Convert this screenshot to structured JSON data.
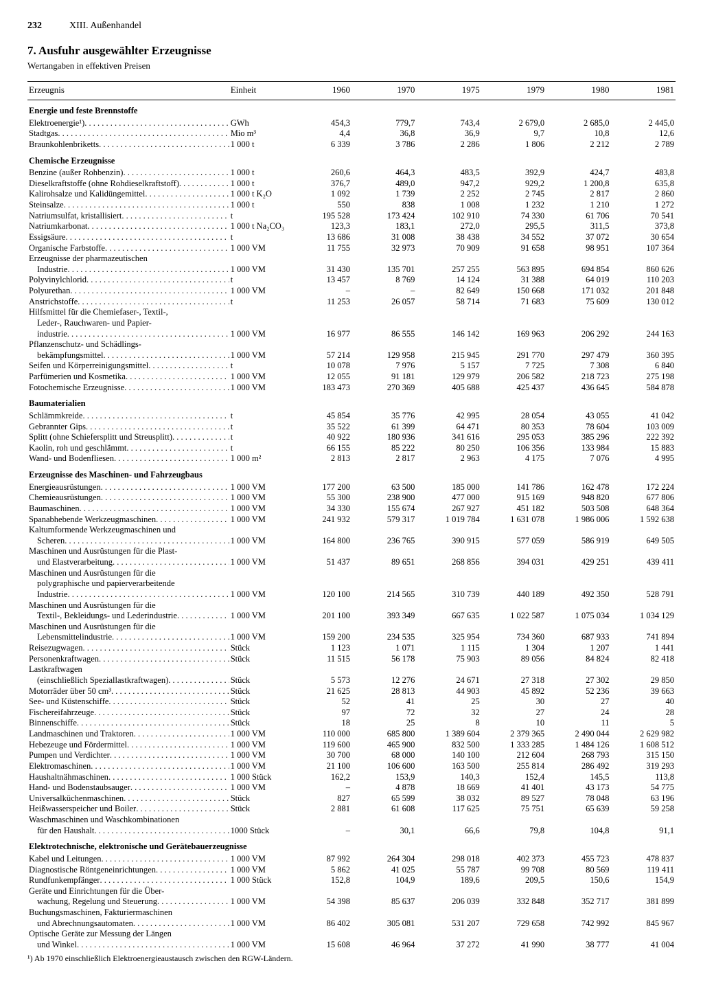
{
  "page": {
    "number": "232",
    "chapter": "XIII. Außenhandel"
  },
  "title": "7. Ausfuhr ausgewählter Erzeugnisse",
  "subtitle": "Wertangaben in effektiven Preisen",
  "columns": [
    "Erzeugnis",
    "Einheit",
    "1960",
    "1970",
    "1975",
    "1979",
    "1980",
    "1981"
  ],
  "footnote": "¹) Ab 1970 einschließlich Elektroenergieaustausch zwischen den RGW-Ländern.",
  "rows": [
    {
      "type": "section",
      "label": "Energie und feste Brennstoffe"
    },
    {
      "label": "Elektroenergie¹)",
      "unit": "GWh",
      "v": [
        "454,3",
        "779,7",
        "743,4",
        "2 679,0",
        "2 685,0",
        "2 445,0"
      ]
    },
    {
      "label": "Stadtgas",
      "unit": "Mio m³",
      "v": [
        "4,4",
        "36,8",
        "36,9",
        "9,7",
        "10,8",
        "12,6"
      ]
    },
    {
      "label": "Braunkohlenbriketts",
      "unit": "1 000 t",
      "v": [
        "6 339",
        "3 786",
        "2 286",
        "1 806",
        "2 212",
        "2 789"
      ]
    },
    {
      "type": "section",
      "label": "Chemische Erzeugnisse"
    },
    {
      "label": "Benzine (außer Rohbenzin)",
      "unit": "1 000 t",
      "v": [
        "260,6",
        "464,3",
        "483,5",
        "392,9",
        "424,7",
        "483,8"
      ]
    },
    {
      "label": "Dieselkraftstoffe (ohne Rohdieselkraftstoff)",
      "unit": "1 000 t",
      "v": [
        "376,7",
        "489,0",
        "947,2",
        "929,2",
        "1 200,8",
        "635,8"
      ]
    },
    {
      "label": "Kalirohsalze und Kalidüngemittel",
      "unit": "1 000 t K₂O",
      "v": [
        "1 092",
        "1 739",
        "2 252",
        "2 745",
        "2 817",
        "2 860"
      ]
    },
    {
      "label": "Steinsalze",
      "unit": "1 000 t",
      "v": [
        "550",
        "838",
        "1 008",
        "1 232",
        "1 210",
        "1 272"
      ]
    },
    {
      "label": "Natriumsulfat, kristallisiert",
      "unit": "t",
      "v": [
        "195 528",
        "173 424",
        "102 910",
        "74 330",
        "61 706",
        "70 541"
      ]
    },
    {
      "label": "Natriumkarbonat",
      "unit": "1 000 t Na₂CO₃",
      "v": [
        "123,3",
        "183,1",
        "272,0",
        "295,5",
        "311,5",
        "373,8"
      ]
    },
    {
      "label": "Essigsäure",
      "unit": "t",
      "v": [
        "13 686",
        "31 008",
        "38 438",
        "34 552",
        "37 072",
        "30 654"
      ]
    },
    {
      "label": "Organische Farbstoffe",
      "unit": "1 000 VM",
      "v": [
        "11 755",
        "32 973",
        "70 909",
        "91 658",
        "98 951",
        "107 364"
      ]
    },
    {
      "label": "Erzeugnisse der pharmazeutischen",
      "nodots": true
    },
    {
      "label": "Industrie",
      "indent": 1,
      "unit": "1 000 VM",
      "v": [
        "31 430",
        "135 701",
        "257 255",
        "563 895",
        "694 854",
        "860 626"
      ]
    },
    {
      "label": "Polyvinylchlorid",
      "unit": "t",
      "v": [
        "13 457",
        "8 769",
        "14 124",
        "31 388",
        "64 019",
        "110 203"
      ]
    },
    {
      "label": "Polyurethan",
      "unit": "1 000 VM",
      "v": [
        "–",
        "–",
        "82 649",
        "150 668",
        "171 032",
        "201 848"
      ]
    },
    {
      "label": "Anstrichstoffe",
      "unit": "t",
      "v": [
        "11 253",
        "26 057",
        "58 714",
        "71 683",
        "75 609",
        "130 012"
      ]
    },
    {
      "label": "Hilfsmittel für die Chemiefaser-, Textil-,",
      "nodots": true
    },
    {
      "label": "Leder-, Rauchwaren- und Papier-",
      "indent": 1,
      "nodots": true
    },
    {
      "label": "industrie",
      "indent": 1,
      "unit": "1 000 VM",
      "v": [
        "16 977",
        "86 555",
        "146 142",
        "169 963",
        "206 292",
        "244 163"
      ]
    },
    {
      "label": "Pflanzenschutz- und Schädlings-",
      "nodots": true
    },
    {
      "label": "bekämpfungsmittel",
      "indent": 1,
      "unit": "1 000 VM",
      "v": [
        "57 214",
        "129 958",
        "215 945",
        "291 770",
        "297 479",
        "360 395"
      ]
    },
    {
      "label": "Seifen und Körperreinigungsmittel",
      "unit": "t",
      "v": [
        "10 078",
        "7 976",
        "5 157",
        "7 725",
        "7 308",
        "6 840"
      ]
    },
    {
      "label": "Parfümerien und Kosmetika",
      "unit": "1 000 VM",
      "v": [
        "12 055",
        "91 181",
        "129 979",
        "206 582",
        "218 723",
        "275 198"
      ]
    },
    {
      "label": "Fotochemische Erzeugnisse",
      "unit": "1 000 VM",
      "v": [
        "183 473",
        "270 369",
        "405 688",
        "425 437",
        "436 645",
        "584 878"
      ]
    },
    {
      "type": "section",
      "label": "Baumaterialien"
    },
    {
      "label": "Schlämmkreide",
      "unit": "t",
      "v": [
        "45 854",
        "35 776",
        "42 995",
        "28 054",
        "43 055",
        "41 042"
      ]
    },
    {
      "label": "Gebrannter Gips",
      "unit": "t",
      "v": [
        "35 522",
        "61 399",
        "64 471",
        "80 353",
        "78 604",
        "103 009"
      ]
    },
    {
      "label": "Splitt (ohne Schiefersplitt und Streusplitt)",
      "unit": "t",
      "v": [
        "40 922",
        "180 936",
        "341 616",
        "295 053",
        "385 296",
        "222 392"
      ]
    },
    {
      "label": "Kaolin, roh und geschlämmt",
      "unit": "t",
      "v": [
        "66 155",
        "85 222",
        "80 250",
        "106 356",
        "133 984",
        "15 883"
      ]
    },
    {
      "label": "Wand- und Bodenfliesen",
      "unit": "1 000 m²",
      "v": [
        "2 813",
        "2 817",
        "2 963",
        "4 175",
        "7 076",
        "4 995"
      ]
    },
    {
      "type": "section",
      "label": "Erzeugnisse des Maschinen- und Fahrzeugbaus"
    },
    {
      "label": "Energieausrüstungen",
      "unit": "1 000 VM",
      "v": [
        "177 200",
        "63 500",
        "185 000",
        "141 786",
        "162 478",
        "172 224"
      ]
    },
    {
      "label": "Chemieausrüstungen",
      "unit": "1 000 VM",
      "v": [
        "55 300",
        "238 900",
        "477 000",
        "915 169",
        "948 820",
        "677 806"
      ]
    },
    {
      "label": "Baumaschinen",
      "unit": "1 000 VM",
      "v": [
        "34 330",
        "155 674",
        "267 927",
        "451 182",
        "503 508",
        "648 364"
      ]
    },
    {
      "label": "Spanabhebende Werkzeugmaschinen",
      "unit": "1 000 VM",
      "v": [
        "241 932",
        "579 317",
        "1 019 784",
        "1 631 078",
        "1 986 006",
        "1 592 638"
      ]
    },
    {
      "label": "Kaltumformende Werkzeugmaschinen und",
      "nodots": true
    },
    {
      "label": "Scheren",
      "indent": 1,
      "unit": "1 000 VM",
      "v": [
        "164 800",
        "236 765",
        "390 915",
        "577 059",
        "586 919",
        "649 505"
      ]
    },
    {
      "label": "Maschinen und Ausrüstungen für die Plast-",
      "nodots": true
    },
    {
      "label": "und Elastverarbeitung",
      "indent": 1,
      "unit": "1 000 VM",
      "v": [
        "51 437",
        "89 651",
        "268 856",
        "394 031",
        "429 251",
        "439 411"
      ]
    },
    {
      "label": "Maschinen und Ausrüstungen für die",
      "nodots": true
    },
    {
      "label": "polygraphische und papierverarbeitende",
      "indent": 1,
      "nodots": true
    },
    {
      "label": "Industrie",
      "indent": 1,
      "unit": "1 000 VM",
      "v": [
        "120 100",
        "214 565",
        "310 739",
        "440 189",
        "492 350",
        "528 791"
      ]
    },
    {
      "label": "Maschinen und Ausrüstungen für die",
      "nodots": true
    },
    {
      "label": "Textil-, Bekleidungs- und Lederindustrie",
      "indent": 1,
      "unit": "1 000 VM",
      "v": [
        "201 100",
        "393 349",
        "667 635",
        "1 022 587",
        "1 075 034",
        "1 034 129"
      ]
    },
    {
      "label": "Maschinen und Ausrüstungen für die",
      "nodots": true
    },
    {
      "label": "Lebensmittelindustrie",
      "indent": 1,
      "unit": "1 000 VM",
      "v": [
        "159 200",
        "234 535",
        "325 954",
        "734 360",
        "687 933",
        "741 894"
      ]
    },
    {
      "label": "Reisezugwagen",
      "unit": "Stück",
      "v": [
        "1 123",
        "1 071",
        "1 115",
        "1 304",
        "1 207",
        "1 441"
      ]
    },
    {
      "label": "Personenkraftwagen",
      "unit": "Stück",
      "v": [
        "11 515",
        "56 178",
        "75 903",
        "89 056",
        "84 824",
        "82 418"
      ]
    },
    {
      "label": "Lastkraftwagen",
      "nodots": true
    },
    {
      "label": "(einschließlich Speziallastkraftwagen)",
      "indent": 1,
      "unit": "Stück",
      "v": [
        "5 573",
        "12 276",
        "24 671",
        "27 318",
        "27 302",
        "29 850"
      ]
    },
    {
      "label": "Motorräder über 50 cm³",
      "unit": "Stück",
      "v": [
        "21 625",
        "28 813",
        "44 903",
        "45 892",
        "52 236",
        "39 663"
      ]
    },
    {
      "label": "See- und Küstenschiffe",
      "unit": "Stück",
      "v": [
        "52",
        "41",
        "25",
        "30",
        "27",
        "40"
      ]
    },
    {
      "label": "Fischereifahrzeuge",
      "unit": "Stück",
      "v": [
        "97",
        "72",
        "32",
        "27",
        "24",
        "28"
      ]
    },
    {
      "label": "Binnenschiffe",
      "unit": "Stück",
      "v": [
        "18",
        "25",
        "8",
        "10",
        "11",
        "5"
      ]
    },
    {
      "label": "Landmaschinen und Traktoren",
      "unit": "1 000 VM",
      "v": [
        "110 000",
        "685 800",
        "1 389 604",
        "2 379 365",
        "2 490 044",
        "2 629 982"
      ]
    },
    {
      "label": "Hebezeuge und Fördermittel",
      "unit": "1 000 VM",
      "v": [
        "119 600",
        "465 900",
        "832 500",
        "1 333 285",
        "1 484 126",
        "1 608 512"
      ]
    },
    {
      "label": "Pumpen und Verdichter",
      "unit": "1 000 VM",
      "v": [
        "30 700",
        "68 000",
        "140 100",
        "212 604",
        "268 793",
        "315 150"
      ]
    },
    {
      "label": "Elektromaschinen",
      "unit": "1 000 VM",
      "v": [
        "21 100",
        "106 600",
        "163 500",
        "255 814",
        "286 492",
        "319 293"
      ]
    },
    {
      "label": "Haushaltnähmaschinen",
      "unit": "1 000 Stück",
      "v": [
        "162,2",
        "153,9",
        "140,3",
        "152,4",
        "145,5",
        "113,8"
      ]
    },
    {
      "label": "Hand- und Bodenstaubsauger",
      "unit": "1 000 VM",
      "v": [
        "–",
        "4 878",
        "18 669",
        "41 401",
        "43 173",
        "54 775"
      ]
    },
    {
      "label": "Universalküchenmaschinen",
      "unit": "Stück",
      "v": [
        "827",
        "65 599",
        "38 032",
        "89 527",
        "78 048",
        "63 196"
      ]
    },
    {
      "label": "Heißwasserspeicher und Boiler",
      "unit": "Stück",
      "v": [
        "2 881",
        "61 608",
        "117 625",
        "75 751",
        "65 639",
        "59 258"
      ]
    },
    {
      "label": "Waschmaschinen und Waschkombinationen",
      "nodots": true
    },
    {
      "label": "für den Haushalt",
      "indent": 1,
      "unit": "1000 Stück",
      "v": [
        "–",
        "30,1",
        "66,6",
        "79,8",
        "104,8",
        "91,1"
      ]
    },
    {
      "type": "section",
      "label": "Elektrotechnische, elektronische und Gerätebauerzeugnisse"
    },
    {
      "label": "Kabel und Leitungen",
      "unit": "1 000 VM",
      "v": [
        "87 992",
        "264 304",
        "298 018",
        "402 373",
        "455 723",
        "478 837"
      ]
    },
    {
      "label": "Diagnostische Röntgeneinrichtungen",
      "unit": "1 000 VM",
      "v": [
        "5 862",
        "41 025",
        "55 787",
        "99 708",
        "80 569",
        "119 411"
      ]
    },
    {
      "label": "Rundfunkempfänger",
      "unit": "1 000 Stück",
      "v": [
        "152,8",
        "104,9",
        "189,6",
        "209,5",
        "150,6",
        "154,9"
      ]
    },
    {
      "label": "Geräte und Einrichtungen für die Über-",
      "nodots": true
    },
    {
      "label": "wachung, Regelung und Steuerung",
      "indent": 1,
      "unit": "1 000 VM",
      "v": [
        "54 398",
        "85 637",
        "206 039",
        "332 848",
        "352 717",
        "381 899"
      ]
    },
    {
      "label": "Buchungsmaschinen, Fakturiermaschinen",
      "nodots": true
    },
    {
      "label": "und Abrechnungsautomaten",
      "indent": 1,
      "unit": "1 000 VM",
      "v": [
        "86 402",
        "305 081",
        "531 207",
        "729 658",
        "742 992",
        "845 967"
      ]
    },
    {
      "label": "Optische Geräte zur Messung der Längen",
      "nodots": true
    },
    {
      "label": "und Winkel",
      "indent": 1,
      "unit": "1 000 VM",
      "v": [
        "15 608",
        "46 964",
        "37 272",
        "41 990",
        "38 777",
        "41 004"
      ]
    }
  ]
}
